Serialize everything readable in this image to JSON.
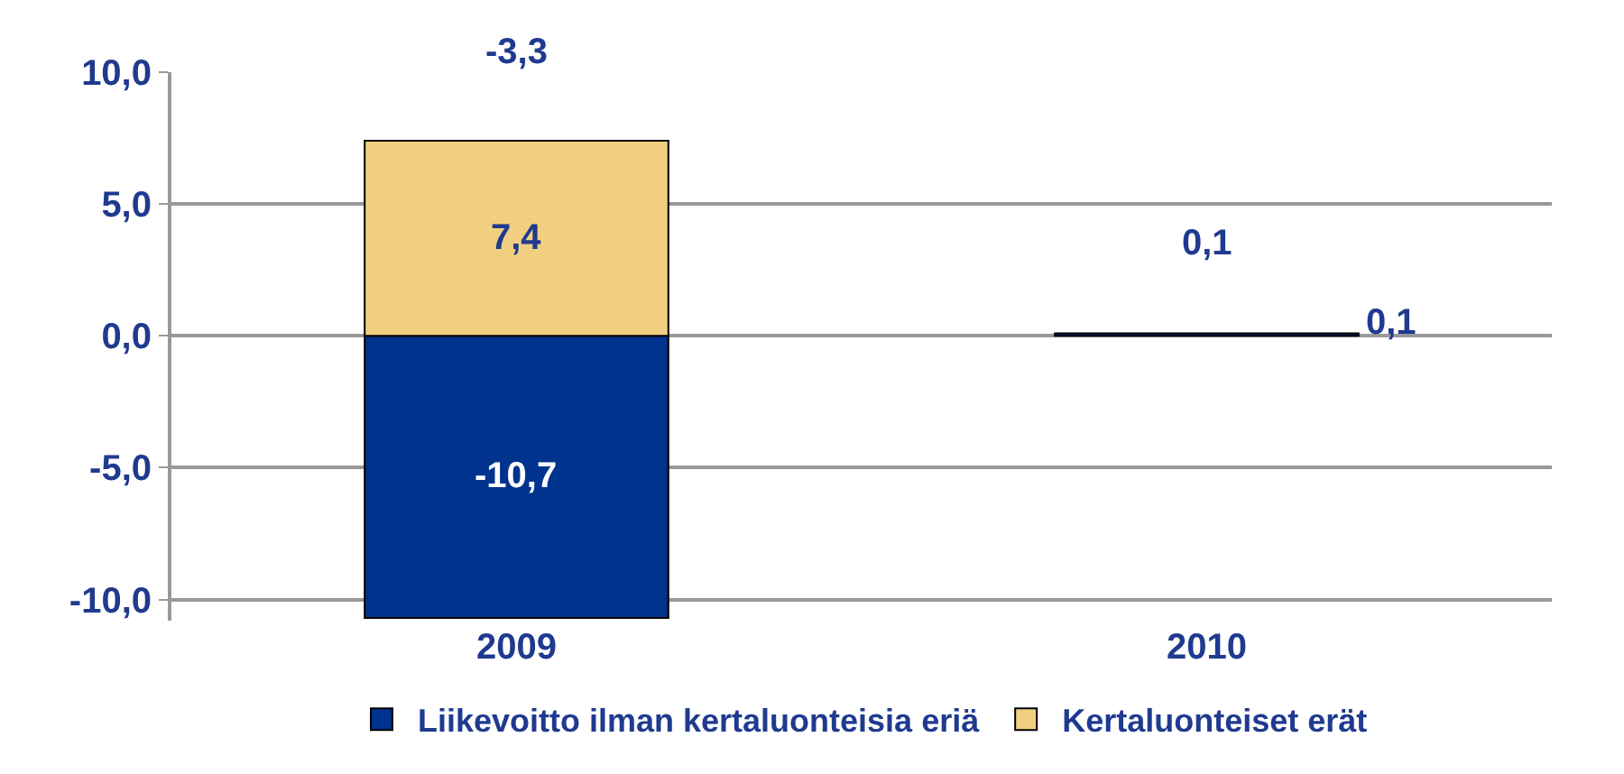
{
  "chart_data": {
    "type": "bar",
    "categories": [
      "2009",
      "2010"
    ],
    "stacked": true,
    "series": [
      {
        "name": "Liikevoitto ilman kertaluonteisia eriä",
        "color": "#00338d",
        "values": [
          -10.7,
          0.1
        ],
        "value_labels": [
          "-10,7",
          "0,1"
        ]
      },
      {
        "name": "Kertaluonteiset erät",
        "color": "#f0d080",
        "values": [
          7.4,
          null
        ],
        "value_labels": [
          "7,4",
          null
        ]
      }
    ],
    "totals": [
      "-3,3",
      "0,1"
    ],
    "ylim": [
      -10.8,
      10
    ],
    "yticks": [
      {
        "value": -10,
        "label": "-10,0"
      },
      {
        "value": -5,
        "label": "-5,0"
      },
      {
        "value": 0,
        "label": "0,0"
      },
      {
        "value": 5,
        "label": "5,0"
      },
      {
        "value": 10,
        "label": "10,0"
      }
    ],
    "grid": "y",
    "legend": "bottom"
  }
}
